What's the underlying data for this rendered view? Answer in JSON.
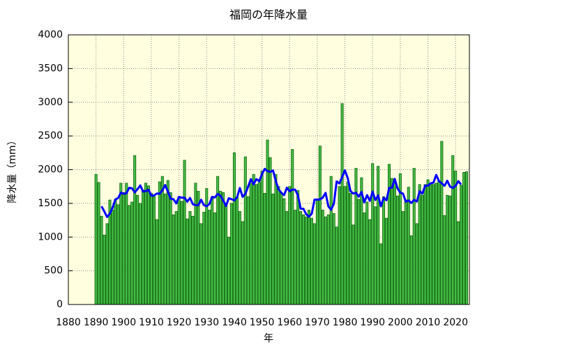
{
  "chart_data": {
    "type": "bar",
    "title": "福岡の年降水量",
    "xlabel": "年",
    "ylabel": "降水量（mm）",
    "xlim": [
      1880,
      2025
    ],
    "xticks": [
      1880,
      1890,
      1900,
      1910,
      1920,
      1930,
      1940,
      1950,
      1960,
      1970,
      1980,
      1990,
      2000,
      2010,
      2020
    ],
    "ylim": [
      0,
      4000
    ],
    "yticks": [
      0,
      500,
      1000,
      1500,
      2000,
      2500,
      3000,
      3500,
      4000
    ],
    "grid": true,
    "background": "#ffffe0",
    "x": [
      1890,
      1891,
      1892,
      1893,
      1894,
      1895,
      1896,
      1897,
      1898,
      1899,
      1900,
      1901,
      1902,
      1903,
      1904,
      1905,
      1906,
      1907,
      1908,
      1909,
      1910,
      1911,
      1912,
      1913,
      1914,
      1915,
      1916,
      1917,
      1918,
      1919,
      1920,
      1921,
      1922,
      1923,
      1924,
      1925,
      1926,
      1927,
      1928,
      1929,
      1930,
      1931,
      1932,
      1933,
      1934,
      1935,
      1936,
      1937,
      1938,
      1939,
      1940,
      1941,
      1942,
      1943,
      1944,
      1945,
      1946,
      1947,
      1948,
      1949,
      1950,
      1951,
      1952,
      1953,
      1954,
      1955,
      1956,
      1957,
      1958,
      1959,
      1960,
      1961,
      1962,
      1963,
      1964,
      1965,
      1966,
      1967,
      1968,
      1969,
      1970,
      1971,
      1972,
      1973,
      1974,
      1975,
      1976,
      1977,
      1978,
      1979,
      1980,
      1981,
      1982,
      1983,
      1984,
      1985,
      1986,
      1987,
      1988,
      1989,
      1990,
      1991,
      1992,
      1993,
      1994,
      1995,
      1996,
      1997,
      1998,
      1999,
      2000,
      2001,
      2002,
      2003,
      2004,
      2005,
      2006,
      2007,
      2008,
      2009,
      2010,
      2011,
      2012,
      2013,
      2014,
      2015,
      2016,
      2017,
      2018,
      2019,
      2020,
      2021,
      2022,
      2023,
      2024
    ],
    "series": [
      {
        "type": "bar",
        "color": "#44bb44",
        "values": [
          1930,
          1810,
          1310,
          1030,
          1200,
          1550,
          1400,
          1560,
          1480,
          1800,
          1660,
          1800,
          1470,
          1520,
          2210,
          1620,
          1500,
          1700,
          1800,
          1760,
          1650,
          1600,
          1260,
          1820,
          1900,
          1640,
          1840,
          1660,
          1330,
          1380,
          1600,
          1530,
          2140,
          1270,
          1380,
          1310,
          1800,
          1680,
          1200,
          1370,
          1720,
          1400,
          1600,
          1360,
          1900,
          1680,
          1660,
          1470,
          1000,
          1500,
          2250,
          1590,
          1380,
          1230,
          2190,
          1600,
          1800,
          1930,
          1780,
          1810,
          1980,
          1650,
          2440,
          2180,
          1640,
          1930,
          1750,
          1660,
          1570,
          1380,
          1750,
          2300,
          1400,
          1690,
          1380,
          1330,
          1300,
          1400,
          1280,
          1200,
          1550,
          2350,
          1400,
          1300,
          1330,
          1900,
          1350,
          1150,
          1750,
          2980,
          1750,
          1820,
          1650,
          1180,
          2020,
          1560,
          1880,
          1360,
          1520,
          1260,
          2090,
          1450,
          2050,
          900,
          1600,
          1280,
          2080,
          1870,
          1820,
          1610,
          1940,
          1380,
          1550,
          1740,
          1020,
          2020,
          1200,
          1780,
          1620,
          1780,
          1850,
          1780,
          1780,
          1800,
          1830,
          2420,
          1320,
          1620,
          1610,
          2210,
          1980,
          1230,
          1770,
          1960,
          1970
        ]
      },
      {
        "type": "line",
        "color": "#0000ff",
        "x": [
          1892,
          1893,
          1894,
          1895,
          1896,
          1897,
          1898,
          1899,
          1900,
          1901,
          1902,
          1903,
          1904,
          1905,
          1906,
          1907,
          1908,
          1909,
          1910,
          1911,
          1912,
          1913,
          1914,
          1915,
          1916,
          1917,
          1918,
          1919,
          1920,
          1921,
          1922,
          1923,
          1924,
          1925,
          1926,
          1927,
          1928,
          1929,
          1930,
          1931,
          1932,
          1933,
          1934,
          1935,
          1936,
          1937,
          1938,
          1939,
          1940,
          1941,
          1942,
          1943,
          1944,
          1945,
          1946,
          1947,
          1948,
          1949,
          1950,
          1951,
          1952,
          1953,
          1954,
          1955,
          1956,
          1957,
          1958,
          1959,
          1960,
          1961,
          1962,
          1963,
          1964,
          1965,
          1966,
          1967,
          1968,
          1969,
          1970,
          1971,
          1972,
          1973,
          1974,
          1975,
          1976,
          1977,
          1978,
          1979,
          1980,
          1981,
          1982,
          1983,
          1984,
          1985,
          1986,
          1987,
          1988,
          1989,
          1990,
          1991,
          1992,
          1993,
          1994,
          1995,
          1996,
          1997,
          1998,
          1999,
          2000,
          2001,
          2002,
          2003,
          2004,
          2005,
          2006,
          2007,
          2008,
          2009,
          2010,
          2011,
          2012,
          2013,
          2014,
          2015,
          2016,
          2017,
          2018,
          2019,
          2020,
          2021,
          2022
        ],
        "values": [
          1456,
          1380,
          1298,
          1348,
          1438,
          1558,
          1580,
          1660,
          1642,
          1650,
          1732,
          1724,
          1664,
          1710,
          1766,
          1676,
          1682,
          1702,
          1614,
          1618,
          1646,
          1644,
          1692,
          1772,
          1674,
          1570,
          1562,
          1500,
          1596,
          1584,
          1584,
          1526,
          1580,
          1488,
          1474,
          1472,
          1554,
          1474,
          1458,
          1490,
          1596,
          1588,
          1640,
          1614,
          1542,
          1462,
          1576,
          1562,
          1544,
          1590,
          1728,
          1598,
          1640,
          1750,
          1860,
          1784,
          1860,
          1830,
          1932,
          2012,
          1978,
          1968,
          1988,
          1832,
          1710,
          1658,
          1622,
          1732,
          1680,
          1704,
          1704,
          1620,
          1420,
          1420,
          1338,
          1302,
          1346,
          1556,
          1556,
          1560,
          1586,
          1656,
          1456,
          1406,
          1496,
          1826,
          1796,
          1890,
          1990,
          1876,
          1684,
          1646,
          1658,
          1600,
          1668,
          1516,
          1622,
          1536,
          1674,
          1550,
          1618,
          1456,
          1582,
          1546,
          1730,
          1732,
          1864,
          1724,
          1660,
          1644,
          1526,
          1542,
          1506,
          1552,
          1528,
          1680,
          1646,
          1762,
          1762,
          1798,
          1808,
          1922,
          1830,
          1798,
          1760,
          1836,
          1748,
          1730,
          1760,
          1830,
          1782
        ]
      }
    ]
  }
}
